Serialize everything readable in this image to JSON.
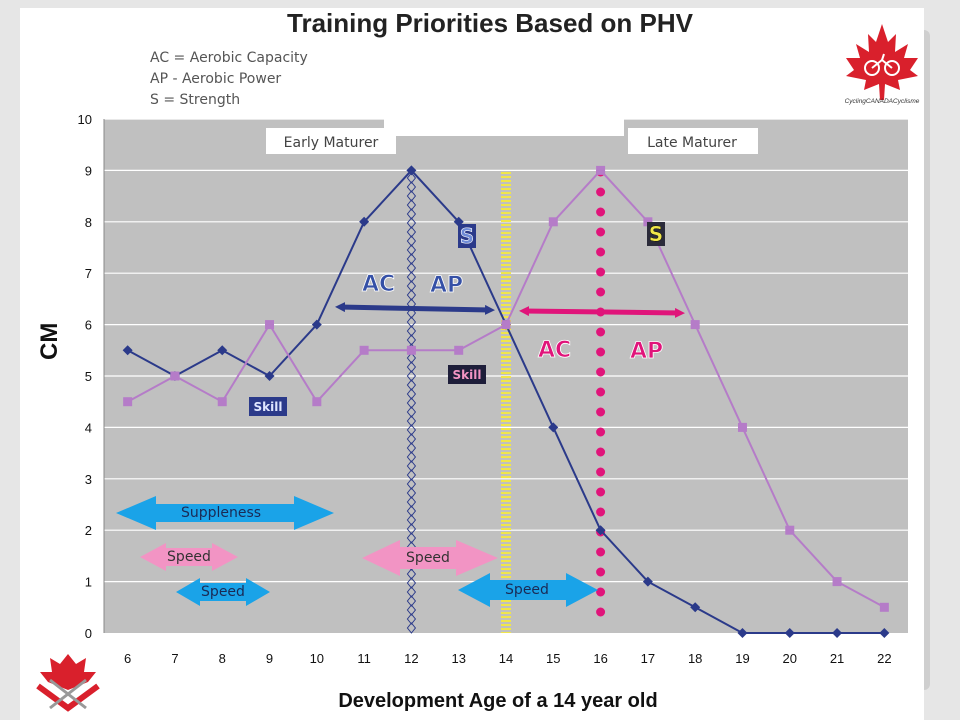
{
  "title": "Training Priorities Based on PHV",
  "legend_key": [
    "AC = Aerobic Capacity",
    "AP - Aerobic Power",
    "S = Strength"
  ],
  "logo_text": "CyclingCANADACyclisme",
  "colors": {
    "navy": "#2b3a8a",
    "mauve": "#b57cc8",
    "pink": "#e0147a",
    "cyan": "#1aa3e8",
    "light_pink": "#f294c4",
    "yellow": "#f0e64a",
    "plot_bg": "#c0c0c0"
  },
  "chart_data": {
    "type": "line",
    "xlabel": "Development Age of a 14 year old",
    "ylabel": "CM",
    "ylim": [
      0,
      10
    ],
    "grid": true,
    "categories": [
      "6",
      "7",
      "8",
      "9",
      "10",
      "11",
      "12",
      "13",
      "14",
      "15",
      "16",
      "17",
      "18",
      "19",
      "20",
      "21",
      "22"
    ],
    "yticks": [
      "0",
      "1",
      "2",
      "3",
      "4",
      "5",
      "6",
      "7",
      "8",
      "9",
      "10"
    ],
    "series": [
      {
        "values": [
          5.5,
          5,
          5.5,
          5,
          6,
          8,
          9,
          8,
          6,
          4,
          2,
          1,
          0.5,
          0,
          0,
          0,
          0
        ]
      },
      {
        "values": [
          4.5,
          5,
          4.5,
          6,
          4.5,
          5.5,
          5.5,
          5.5,
          6,
          8,
          9,
          8,
          6,
          4,
          2,
          1,
          0.5
        ]
      }
    ],
    "vertical_markers": [
      {
        "x": 12,
        "style": "navy diamond chain"
      },
      {
        "x": 14,
        "style": "yellow dashed"
      },
      {
        "x": 16,
        "style": "magenta dotted"
      }
    ],
    "annotations": {
      "early_maturer": "Early Maturer",
      "late_maturer": "Late Maturer",
      "s_early": "S",
      "s_late": "S",
      "ac_early": "AC",
      "ap_early": "AP",
      "ac_late": "AC",
      "ap_late": "AP",
      "skill_early": "Skill",
      "skill_late": "Skill",
      "suppleness": "Suppleness",
      "speed_pink_early": "Speed",
      "speed_blue_early": "Speed",
      "speed_pink_mid": "Speed",
      "speed_blue_mid": "Speed"
    }
  }
}
